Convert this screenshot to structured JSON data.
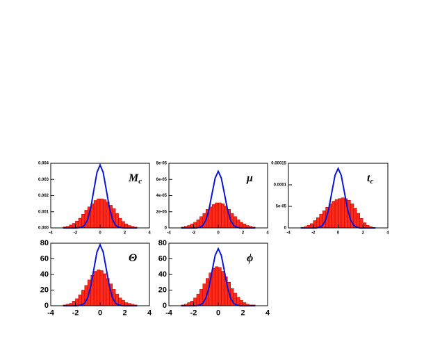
{
  "chart_data": [
    {
      "type": "histogram",
      "label": "M",
      "label_sub": "c",
      "color": "#ff2a1a",
      "bins": [
        -3,
        -2.75,
        -2.5,
        -2.25,
        -2,
        -1.75,
        -1.5,
        -1.25,
        -1,
        -0.75,
        -0.5,
        -0.25,
        0,
        0.25,
        0.5,
        0.75,
        1,
        1.25,
        1.5,
        1.75,
        2,
        2.25,
        2.5,
        2.75,
        3
      ],
      "counts": [
        6e-05,
        0.0001,
        0.00018,
        0.00028,
        0.00042,
        0.0006,
        0.00085,
        0.0011,
        0.0013,
        0.0015,
        0.0017,
        0.0018,
        0.0018,
        0.00175,
        0.0016,
        0.0014,
        0.0012,
        0.0009,
        0.0006,
        0.0004,
        0.00025,
        0.00015,
        0.0001,
        5e-05
      ],
      "curve": {
        "color": "#0a14d6",
        "x": [
          -3,
          -2.75,
          -2.5,
          -2.25,
          -2,
          -1.75,
          -1.5,
          -1.25,
          -1,
          -0.75,
          -0.5,
          -0.25,
          0,
          0.25,
          0.5,
          0.75,
          1,
          1.25,
          1.5,
          1.75,
          2,
          2.25,
          2.5,
          2.75,
          3
        ],
        "values": [
          0,
          0,
          0,
          0,
          0,
          1e-05,
          4e-05,
          0.00017,
          0.00053,
          0.00127,
          0.00237,
          0.00344,
          0.0039,
          0.00344,
          0.00237,
          0.00127,
          0.00053,
          0.00017,
          4e-05,
          1e-05,
          0,
          0,
          0,
          0,
          0
        ]
      },
      "xlim": [
        -4,
        4
      ],
      "xticks": [
        -4,
        -2,
        0,
        2,
        4
      ],
      "ylim": [
        0,
        0.004
      ],
      "yticks": [
        {
          "value": 0,
          "label": "0.000"
        },
        0.001,
        0.002,
        0.003,
        0.004
      ]
    },
    {
      "type": "histogram",
      "label": "μ",
      "color": "#ff2a1a",
      "bins": [
        -3,
        -2.75,
        -2.5,
        -2.25,
        -2,
        -1.75,
        -1.5,
        -1.25,
        -1,
        -0.75,
        -0.5,
        -0.25,
        0,
        0.25,
        0.5,
        0.75,
        1,
        1.25,
        1.5,
        1.75,
        2,
        2.25,
        2.5,
        2.75,
        3
      ],
      "counts": [
        1e-06,
        2e-06,
        3e-06,
        5e-06,
        7e-06,
        1e-05,
        1.4e-05,
        1.8e-05,
        2.3e-05,
        2.6e-05,
        2.9e-05,
        3.1e-05,
        3.1e-05,
        3e-05,
        2.7e-05,
        2.3e-05,
        1.8e-05,
        1.4e-05,
        1e-05,
        7e-06,
        5e-06,
        3e-06,
        2e-06,
        1e-06
      ],
      "curve": {
        "color": "#0a14d6",
        "x": [
          -3,
          -2.75,
          -2.5,
          -2.25,
          -2,
          -1.75,
          -1.5,
          -1.25,
          -1,
          -0.75,
          -0.5,
          -0.25,
          0,
          0.25,
          0.5,
          0.75,
          1,
          1.25,
          1.5,
          1.75,
          2,
          2.25,
          2.5,
          2.75,
          3
        ],
        "values": [
          0,
          0,
          0,
          0,
          0,
          0,
          7.7e-07,
          3.1e-06,
          9.5e-06,
          2.28e-05,
          4.25e-05,
          6.17e-05,
          7e-05,
          6.17e-05,
          4.25e-05,
          2.28e-05,
          9.5e-06,
          3.1e-06,
          7.7e-07,
          0,
          0,
          0,
          0,
          0,
          0
        ]
      },
      "xlim": [
        -4,
        4
      ],
      "xticks": [
        -4,
        -2,
        0,
        2,
        4
      ],
      "ylim": [
        0,
        8e-05
      ],
      "yticks": [
        0,
        {
          "value": 2e-05,
          "label": "2e-05"
        },
        {
          "value": 4e-05,
          "label": "4e-05"
        },
        {
          "value": 6e-05,
          "label": "6e-05"
        },
        {
          "value": 8e-05,
          "label": "8e-05"
        }
      ]
    },
    {
      "type": "histogram",
      "label": "t",
      "label_sub": "c",
      "color": "#ff2a1a",
      "bins": [
        -3,
        -2.75,
        -2.5,
        -2.25,
        -2,
        -1.75,
        -1.5,
        -1.25,
        -1,
        -0.75,
        -0.5,
        -0.25,
        0,
        0.25,
        0.5,
        0.75,
        1,
        1.25,
        1.5,
        1.75,
        2,
        2.25,
        2.5,
        2.75,
        3
      ],
      "counts": [
        1e-06,
        3e-06,
        6e-06,
        1e-05,
        1.7e-05,
        2.4e-05,
        3.2e-05,
        4e-05,
        4.8e-05,
        5.6e-05,
        6.2e-05,
        6.6e-05,
        6.8e-05,
        7e-05,
        6.8e-05,
        6.4e-05,
        5.6e-05,
        4.6e-05,
        3.4e-05,
        2.2e-05,
        1.2e-05,
        6e-06,
        3e-06,
        1e-06
      ],
      "curve": {
        "color": "#0a14d6",
        "x": [
          -3,
          -2.75,
          -2.5,
          -2.25,
          -2,
          -1.75,
          -1.5,
          -1.25,
          -1,
          -0.75,
          -0.5,
          -0.25,
          0,
          0.25,
          0.5,
          0.75,
          1,
          1.25,
          1.5,
          1.75,
          2,
          2.25,
          2.5,
          2.75,
          3
        ],
        "values": [
          0,
          0,
          0,
          0,
          0,
          0,
          1.5e-06,
          6.1e-06,
          1.86e-05,
          4.49e-05,
          8.38e-05,
          0.000122,
          0.000138,
          0.000122,
          8.38e-05,
          4.49e-05,
          1.86e-05,
          6.1e-06,
          1.5e-06,
          0,
          0,
          0,
          0,
          0,
          0
        ]
      },
      "xlim": [
        -4,
        4
      ],
      "xticks": [
        -4,
        -2,
        0,
        2,
        4
      ],
      "ylim": [
        0,
        0.00015
      ],
      "yticks": [
        0,
        {
          "value": 5e-05,
          "label": "5e-05"
        },
        0.0001,
        0.00015
      ]
    },
    {
      "type": "histogram",
      "label": "Θ",
      "color": "#ff2a1a",
      "bins": [
        -3,
        -2.75,
        -2.5,
        -2.25,
        -2,
        -1.75,
        -1.5,
        -1.25,
        -1,
        -0.75,
        -0.5,
        -0.25,
        0,
        0.25,
        0.5,
        0.75,
        1,
        1.25,
        1.5,
        1.75,
        2,
        2.25,
        2.5,
        2.75,
        3
      ],
      "counts": [
        1,
        2,
        3,
        6,
        9,
        14,
        20,
        26,
        33,
        39,
        44,
        46,
        45,
        41,
        35,
        28,
        21,
        15,
        10,
        7,
        4,
        3,
        2,
        1
      ],
      "curve": {
        "color": "#0a14d6",
        "x": [
          -3,
          -2.75,
          -2.5,
          -2.25,
          -2,
          -1.75,
          -1.5,
          -1.25,
          -1,
          -0.75,
          -0.5,
          -0.25,
          0,
          0.25,
          0.5,
          0.75,
          1,
          1.25,
          1.5,
          1.75,
          2,
          2.25,
          2.5,
          2.75,
          3
        ],
        "values": [
          0,
          0,
          0,
          0,
          0,
          0.2,
          0.9,
          3.4,
          10.5,
          25.4,
          47.3,
          68.8,
          78,
          68.8,
          47.3,
          25.4,
          10.5,
          3.4,
          0.9,
          0.2,
          0,
          0,
          0,
          0,
          0
        ]
      },
      "xlim": [
        -4,
        4
      ],
      "xticks": [
        -4,
        -2,
        0,
        2,
        4
      ],
      "ylim": [
        0,
        80
      ],
      "yticks": [
        0,
        20,
        40,
        60,
        80
      ]
    },
    {
      "type": "histogram",
      "label": "ϕ",
      "color": "#ff2a1a",
      "bins": [
        -3,
        -2.75,
        -2.5,
        -2.25,
        -2,
        -1.75,
        -1.5,
        -1.25,
        -1,
        -0.75,
        -0.5,
        -0.25,
        0,
        0.25,
        0.5,
        0.75,
        1,
        1.25,
        1.5,
        1.75,
        2,
        2.25,
        2.5,
        2.75,
        3
      ],
      "counts": [
        1,
        2,
        4,
        6,
        10,
        15,
        21,
        28,
        35,
        42,
        48,
        50,
        49,
        44,
        37,
        30,
        22,
        16,
        11,
        7,
        4,
        2,
        1,
        1
      ],
      "curve": {
        "color": "#0a14d6",
        "x": [
          -3,
          -2.75,
          -2.5,
          -2.25,
          -2,
          -1.75,
          -1.5,
          -1.25,
          -1,
          -0.75,
          -0.5,
          -0.25,
          0,
          0.25,
          0.5,
          0.75,
          1,
          1.25,
          1.5,
          1.75,
          2,
          2.25,
          2.5,
          2.75,
          3
        ],
        "values": [
          0,
          0,
          0,
          0,
          0,
          0.1,
          0.8,
          3.2,
          9.9,
          23.7,
          44.3,
          64.4,
          73,
          64.4,
          44.3,
          23.7,
          9.9,
          3.2,
          0.8,
          0.1,
          0,
          0,
          0,
          0,
          0
        ]
      },
      "xlim": [
        -4,
        4
      ],
      "xticks": [
        -4,
        -2,
        0,
        2,
        4
      ],
      "ylim": [
        0,
        80
      ],
      "yticks": [
        0,
        20,
        40,
        60,
        80
      ]
    }
  ]
}
